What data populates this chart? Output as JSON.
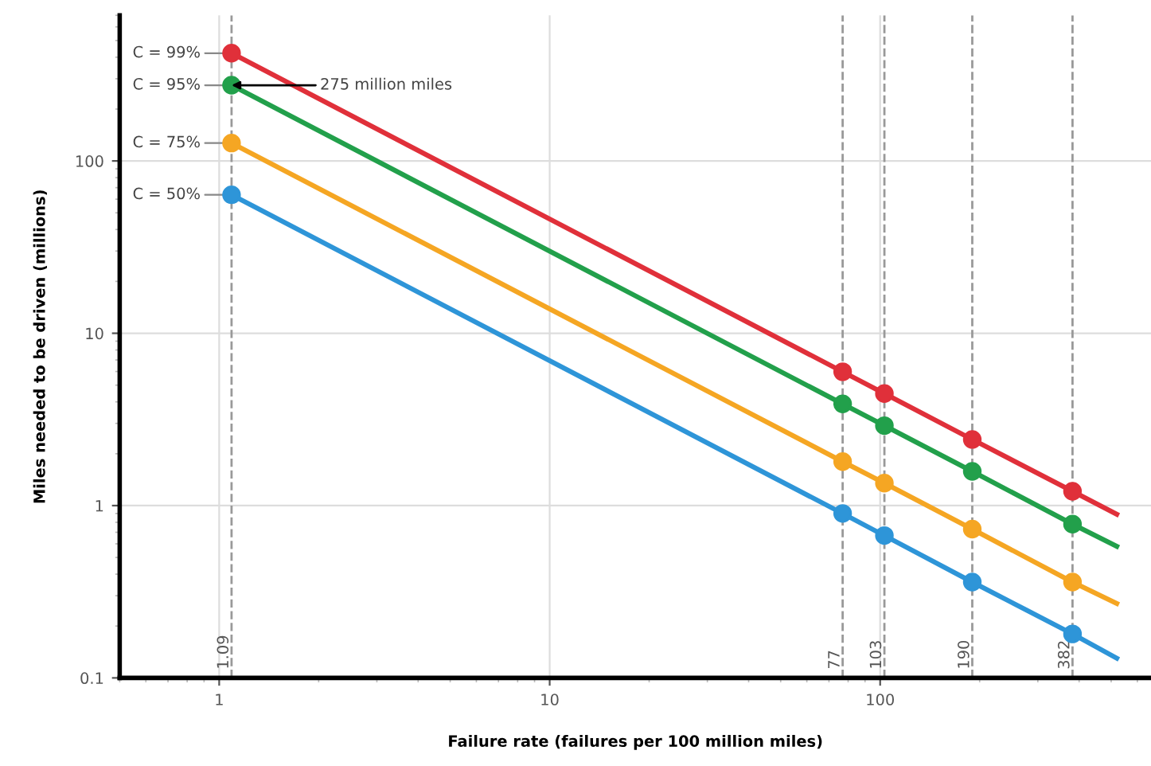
{
  "chart_data": {
    "type": "line",
    "xlabel": "Failure rate (failures per 100 million miles)",
    "ylabel": "Miles needed to be driven (millions)",
    "log": "xy",
    "xlim": [
      0.5,
      660
    ],
    "ylim": [
      0.1,
      700
    ],
    "xticks": [
      1,
      10,
      100
    ],
    "yticks": [
      0.1,
      1,
      10,
      100
    ],
    "grid": true,
    "marker": "none",
    "line_style": "solid",
    "series": [
      {
        "name": "C = 99%",
        "color": "#e0303a",
        "x": [
          1.09,
          77,
          103,
          190,
          382,
          520
        ],
        "values": [
          422,
          5.98,
          4.47,
          2.42,
          1.21,
          0.89
        ]
      },
      {
        "name": "C = 95%",
        "color": "#22a04b",
        "x": [
          1.09,
          77,
          103,
          190,
          382,
          520
        ],
        "values": [
          275,
          3.89,
          2.91,
          1.58,
          0.78,
          0.58
        ]
      },
      {
        "name": "C = 75%",
        "color": "#f5a623",
        "x": [
          1.09,
          77,
          103,
          190,
          382,
          520
        ],
        "values": [
          127,
          1.8,
          1.35,
          0.73,
          0.36,
          0.27
        ]
      },
      {
        "name": "C = 50%",
        "color": "#2e95d8",
        "x": [
          1.09,
          77,
          103,
          190,
          382,
          520
        ],
        "values": [
          63.6,
          0.9,
          0.67,
          0.36,
          0.18,
          0.13
        ]
      },
      {
        "type": "scatter",
        "marker": "circle",
        "color": "#e0303a",
        "x": [
          1.09,
          77,
          103,
          190,
          382
        ],
        "values": [
          422,
          5.98,
          4.47,
          2.42,
          1.21
        ]
      },
      {
        "type": "scatter",
        "marker": "circle",
        "color": "#22a04b",
        "x": [
          1.09,
          77,
          103,
          190,
          382
        ],
        "values": [
          275,
          3.89,
          2.91,
          1.58,
          0.78
        ]
      },
      {
        "type": "scatter",
        "marker": "circle",
        "color": "#f5a623",
        "x": [
          1.09,
          77,
          103,
          190,
          382
        ],
        "values": [
          127,
          1.8,
          1.35,
          0.73,
          0.36
        ]
      },
      {
        "type": "scatter",
        "marker": "circle",
        "color": "#2e95d8",
        "x": [
          1.09,
          77,
          103,
          190,
          382
        ],
        "values": [
          63.6,
          0.9,
          0.67,
          0.36,
          0.18
        ]
      }
    ],
    "ref_lines": [
      {
        "axis": "x",
        "value": 1.09,
        "label": "1.09",
        "color": "#999999",
        "line_style": "dashed"
      },
      {
        "axis": "x",
        "value": 77,
        "label": "77",
        "color": "#999999",
        "line_style": "dashed"
      },
      {
        "axis": "x",
        "value": 103,
        "label": "103",
        "color": "#999999",
        "line_style": "dashed"
      },
      {
        "axis": "x",
        "value": 190,
        "label": "190",
        "color": "#999999",
        "line_style": "dashed"
      },
      {
        "axis": "x",
        "value": 382,
        "label": "382",
        "color": "#999999",
        "line_style": "dashed"
      }
    ],
    "annotations": [
      {
        "text": "275 million miles",
        "x": 1.09,
        "y": 275
      }
    ]
  }
}
